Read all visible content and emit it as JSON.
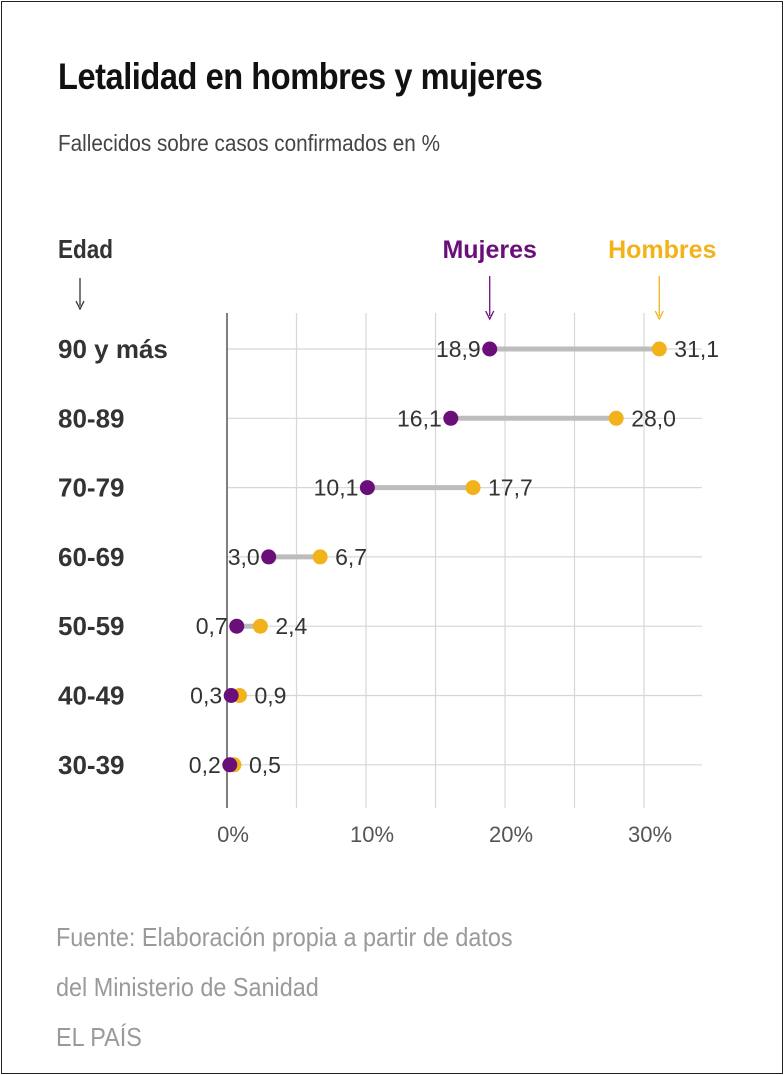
{
  "title": "Letalidad en hombres y mujeres",
  "subtitle": "Fallecidos sobre casos confirmados en %",
  "source_lines": [
    "Fuente: Elaboración propia a partir de datos",
    "del Ministerio de Sanidad",
    "EL PAÍS"
  ],
  "colors": {
    "mujeres": "#6a0f7a",
    "hombres": "#f2b21a",
    "connector": "#bdbdbd",
    "grid": "#d7d7d7",
    "axis": "#555555"
  },
  "chart_data": {
    "type": "dumbbell",
    "row_header": "Edad",
    "categories": [
      "90 y más",
      "80-89",
      "70-79",
      "60-69",
      "50-59",
      "40-49",
      "30-39"
    ],
    "series": [
      {
        "name": "Mujeres",
        "values": [
          18.9,
          16.1,
          10.1,
          3.0,
          0.7,
          0.3,
          0.2
        ],
        "labels": [
          "18,9",
          "16,1",
          "10,1",
          "3,0",
          "0,7",
          "0,3",
          "0,2"
        ]
      },
      {
        "name": "Hombres",
        "values": [
          31.1,
          28.0,
          17.7,
          6.7,
          2.4,
          0.9,
          0.5
        ],
        "labels": [
          "31,1",
          "28,0",
          "17,7",
          "6,7",
          "2,4",
          "0,9",
          "0,5"
        ]
      }
    ],
    "xlim": [
      0,
      34
    ],
    "xticks": [
      0,
      10,
      20,
      30
    ],
    "xtick_labels": [
      "0%",
      "10%",
      "20%",
      "30%"
    ],
    "grid": true,
    "legend": "top, labels above first row markers"
  }
}
